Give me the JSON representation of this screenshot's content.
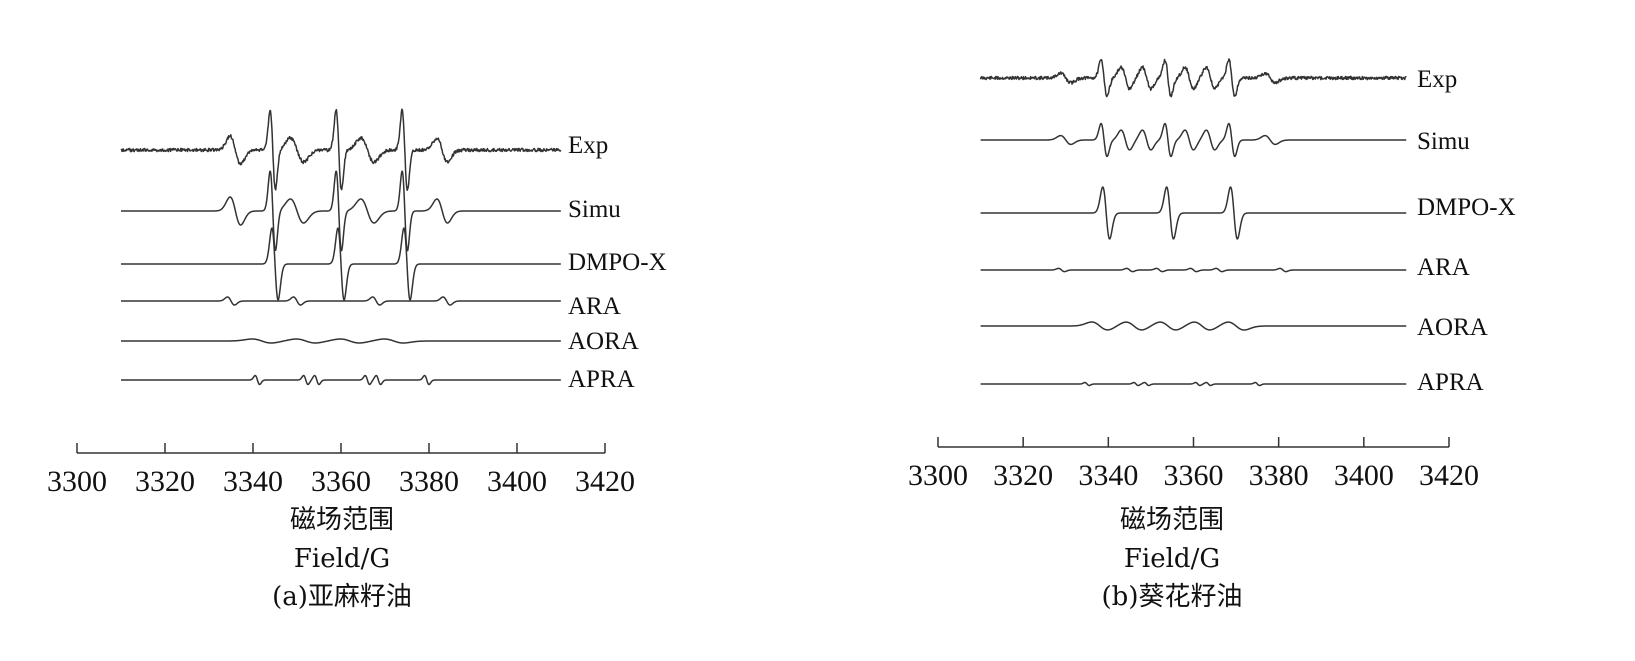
{
  "chart_data": [
    {
      "type": "line",
      "caption": "(a)亚麻籽油",
      "xlabel_cn": "磁场范围",
      "xlabel": "Field/G",
      "xticks": [
        3300,
        3320,
        3340,
        3360,
        3380,
        3400,
        3420
      ],
      "xlim": [
        3300,
        3420
      ],
      "series": [
        {
          "name": "Exp",
          "kind": "exp",
          "lines": [
            {
              "center": 3344.5,
              "width": 0.6,
              "amp": 1.0
            },
            {
              "center": 3359.5,
              "width": 0.6,
              "amp": 1.0
            },
            {
              "center": 3374.5,
              "width": 0.6,
              "amp": 1.0
            },
            {
              "center": 3336,
              "width": 1.2,
              "amp": 0.35
            },
            {
              "center": 3350,
              "width": 1.5,
              "amp": 0.3
            },
            {
              "center": 3366,
              "width": 1.5,
              "amp": 0.3
            },
            {
              "center": 3383,
              "width": 1.2,
              "amp": 0.3
            }
          ]
        },
        {
          "name": "Simu",
          "kind": "sim",
          "lines": [
            {
              "center": 3344.5,
              "width": 0.6,
              "amp": 1.0
            },
            {
              "center": 3359.5,
              "width": 0.6,
              "amp": 1.0
            },
            {
              "center": 3374.5,
              "width": 0.6,
              "amp": 1.0
            },
            {
              "center": 3336,
              "width": 1.2,
              "amp": 0.35
            },
            {
              "center": 3350,
              "width": 1.5,
              "amp": 0.3
            },
            {
              "center": 3366,
              "width": 1.5,
              "amp": 0.3
            },
            {
              "center": 3383,
              "width": 1.2,
              "amp": 0.3
            }
          ]
        },
        {
          "name": "DMPO-X",
          "kind": "sim",
          "lines": [
            {
              "center": 3345,
              "width": 0.7,
              "amp": 1.0
            },
            {
              "center": 3360,
              "width": 0.7,
              "amp": 1.0
            },
            {
              "center": 3375,
              "width": 0.7,
              "amp": 1.0
            }
          ]
        },
        {
          "name": "ARA",
          "kind": "sim",
          "lines": [
            {
              "center": 3335,
              "width": 0.8,
              "amp": 0.4
            },
            {
              "center": 3350,
              "width": 0.8,
              "amp": 0.4
            },
            {
              "center": 3368,
              "width": 0.8,
              "amp": 0.4
            },
            {
              "center": 3384,
              "width": 0.8,
              "amp": 0.4
            }
          ]
        },
        {
          "name": "AORA",
          "kind": "sim",
          "lines": [
            {
              "center": 3342,
              "width": 2.2,
              "amp": 0.25
            },
            {
              "center": 3352,
              "width": 2.2,
              "amp": 0.25
            },
            {
              "center": 3362,
              "width": 2.2,
              "amp": 0.25
            },
            {
              "center": 3372,
              "width": 2.2,
              "amp": 0.25
            }
          ]
        },
        {
          "name": "APRA",
          "kind": "sim",
          "lines": [
            {
              "center": 3341,
              "width": 0.5,
              "amp": 0.45
            },
            {
              "center": 3352,
              "width": 0.5,
              "amp": 0.45
            },
            {
              "center": 3354.5,
              "width": 0.5,
              "amp": 0.45
            },
            {
              "center": 3366,
              "width": 0.5,
              "amp": 0.45
            },
            {
              "center": 3368.5,
              "width": 0.5,
              "amp": 0.45
            },
            {
              "center": 3379.5,
              "width": 0.5,
              "amp": 0.45
            }
          ]
        }
      ]
    },
    {
      "type": "line",
      "caption": "(b)葵花籽油",
      "xlabel_cn": "磁场范围",
      "xlabel": "Field/G",
      "xticks": [
        3300,
        3320,
        3340,
        3360,
        3380,
        3400,
        3420
      ],
      "xlim": [
        3300,
        3420
      ],
      "series": [
        {
          "name": "Exp",
          "kind": "exp",
          "lines": [
            {
              "center": 3339,
              "width": 0.7,
              "amp": 0.75
            },
            {
              "center": 3354,
              "width": 0.7,
              "amp": 0.75
            },
            {
              "center": 3369,
              "width": 0.7,
              "amp": 0.75
            },
            {
              "center": 3344,
              "width": 1.0,
              "amp": 0.45
            },
            {
              "center": 3349,
              "width": 1.0,
              "amp": 0.45
            },
            {
              "center": 3359,
              "width": 1.0,
              "amp": 0.45
            },
            {
              "center": 3364,
              "width": 1.0,
              "amp": 0.45
            },
            {
              "center": 3330,
              "width": 1.2,
              "amp": 0.2
            },
            {
              "center": 3378,
              "width": 1.2,
              "amp": 0.2
            }
          ]
        },
        {
          "name": "Simu",
          "kind": "sim",
          "lines": [
            {
              "center": 3339,
              "width": 0.7,
              "amp": 0.75
            },
            {
              "center": 3354,
              "width": 0.7,
              "amp": 0.75
            },
            {
              "center": 3369,
              "width": 0.7,
              "amp": 0.75
            },
            {
              "center": 3344,
              "width": 1.0,
              "amp": 0.45
            },
            {
              "center": 3349,
              "width": 1.0,
              "amp": 0.45
            },
            {
              "center": 3359,
              "width": 1.0,
              "amp": 0.45
            },
            {
              "center": 3364,
              "width": 1.0,
              "amp": 0.45
            },
            {
              "center": 3330,
              "width": 1.2,
              "amp": 0.2
            },
            {
              "center": 3378,
              "width": 1.2,
              "amp": 0.2
            }
          ]
        },
        {
          "name": "DMPO-X",
          "kind": "sim",
          "lines": [
            {
              "center": 3339.5,
              "width": 0.8,
              "amp": 1.0
            },
            {
              "center": 3354.5,
              "width": 0.8,
              "amp": 1.0
            },
            {
              "center": 3369.5,
              "width": 0.8,
              "amp": 1.0
            }
          ]
        },
        {
          "name": "ARA",
          "kind": "sim",
          "lines": [
            {
              "center": 3329,
              "width": 0.7,
              "amp": 0.2
            },
            {
              "center": 3345,
              "width": 0.7,
              "amp": 0.2
            },
            {
              "center": 3352,
              "width": 0.7,
              "amp": 0.2
            },
            {
              "center": 3360,
              "width": 0.7,
              "amp": 0.2
            },
            {
              "center": 3366,
              "width": 0.7,
              "amp": 0.2
            },
            {
              "center": 3381,
              "width": 0.7,
              "amp": 0.2
            }
          ]
        },
        {
          "name": "AORA",
          "kind": "sim",
          "lines": [
            {
              "center": 3338,
              "width": 1.9,
              "amp": 0.4
            },
            {
              "center": 3346,
              "width": 1.9,
              "amp": 0.4
            },
            {
              "center": 3354,
              "width": 1.9,
              "amp": 0.4
            },
            {
              "center": 3362,
              "width": 1.9,
              "amp": 0.4
            },
            {
              "center": 3370,
              "width": 1.9,
              "amp": 0.4
            }
          ]
        },
        {
          "name": "APRA",
          "kind": "sim",
          "lines": [
            {
              "center": 3335,
              "width": 0.5,
              "amp": 0.25
            },
            {
              "center": 3346.5,
              "width": 0.5,
              "amp": 0.25
            },
            {
              "center": 3349,
              "width": 0.5,
              "amp": 0.25
            },
            {
              "center": 3361,
              "width": 0.5,
              "amp": 0.25
            },
            {
              "center": 3363.5,
              "width": 0.5,
              "amp": 0.25
            },
            {
              "center": 3375,
              "width": 0.5,
              "amp": 0.25
            }
          ]
        }
      ]
    }
  ]
}
